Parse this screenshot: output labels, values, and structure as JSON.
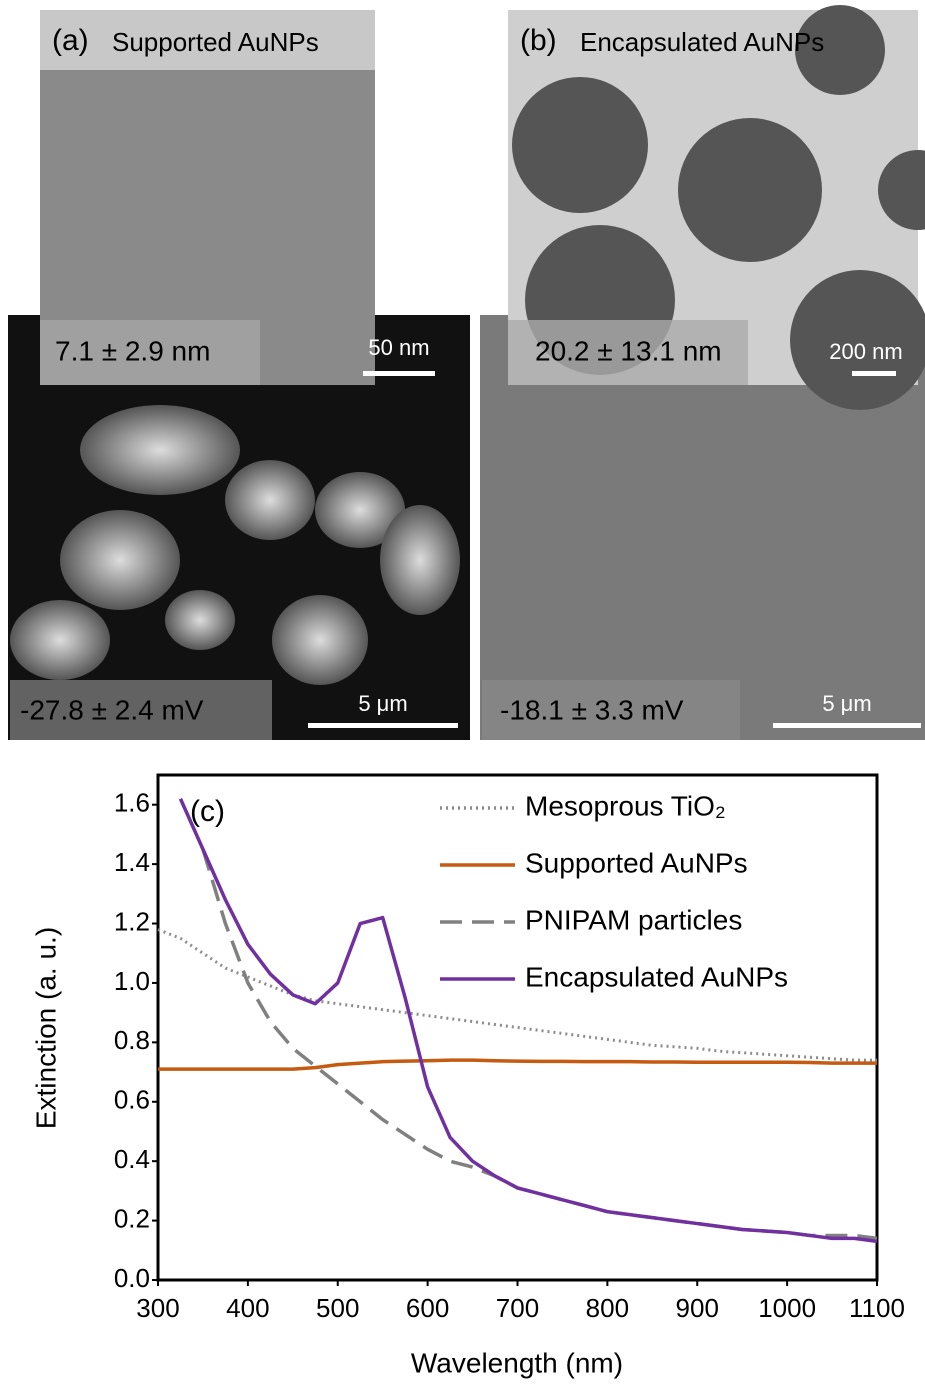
{
  "panels": {
    "a": {
      "label": "(a)",
      "title": "Supported AuNPs",
      "size": "7.1 ± 2.9 nm",
      "scale_tem": "50 nm",
      "zeta": "-27.8 ± 2.4 mV",
      "scale_sem": "5 μm"
    },
    "b": {
      "label": "(b)",
      "title": "Encapsulated AuNPs",
      "size": "20.2 ± 13.1 nm",
      "scale_tem": "200 nm",
      "zeta": "-18.1 ± 3.3 mV",
      "scale_sem": "5 μm"
    }
  },
  "chart_data": {
    "type": "line",
    "annotation": "(c)",
    "x_label": "Wavelength (nm)",
    "y_label": "Extinction (a. u.)",
    "xlim": [
      300,
      1100
    ],
    "ylim": [
      0,
      1.7
    ],
    "xticks": [
      300,
      400,
      500,
      600,
      700,
      800,
      900,
      1000,
      1100
    ],
    "yticks": [
      {
        "value": 0,
        "label": "0.0"
      },
      0.2,
      0.4,
      0.6,
      0.8,
      {
        "value": 1,
        "label": "1.0"
      },
      1.2,
      1.4,
      1.6
    ],
    "legend": "top-right",
    "x": [
      300,
      325,
      350,
      375,
      400,
      425,
      450,
      475,
      500,
      525,
      550,
      575,
      600,
      625,
      650,
      675,
      700,
      725,
      750,
      775,
      800,
      825,
      850,
      875,
      900,
      925,
      950,
      975,
      1000,
      1025,
      1050,
      1075,
      1100
    ],
    "series": [
      {
        "name": "Mesoprous TiO₂",
        "color": "#8c8c8c",
        "style": "dotted",
        "values": [
          1.18,
          1.15,
          1.1,
          1.05,
          1.02,
          0.99,
          0.96,
          0.94,
          0.93,
          0.92,
          0.91,
          0.9,
          0.89,
          0.88,
          0.87,
          0.86,
          0.85,
          0.84,
          0.83,
          0.82,
          0.81,
          0.8,
          0.79,
          0.785,
          0.78,
          0.77,
          0.765,
          0.76,
          0.755,
          0.75,
          0.745,
          0.74,
          0.74
        ]
      },
      {
        "name": "Supported AuNPs",
        "color": "#c55a11",
        "style": "solid",
        "values": [
          0.71,
          0.71,
          0.71,
          0.71,
          0.71,
          0.71,
          0.71,
          0.715,
          0.725,
          0.73,
          0.735,
          0.737,
          0.738,
          0.74,
          0.74,
          0.738,
          0.737,
          0.736,
          0.736,
          0.735,
          0.735,
          0.735,
          0.734,
          0.734,
          0.733,
          0.733,
          0.733,
          0.733,
          0.733,
          0.732,
          0.73,
          0.73,
          0.73
        ]
      },
      {
        "name": "PNIPAM particles",
        "color": "#808080",
        "style": "dashed",
        "values": [
          null,
          null,
          1.45,
          1.2,
          1.0,
          0.87,
          0.78,
          0.72,
          0.66,
          0.6,
          0.54,
          0.49,
          0.44,
          0.4,
          0.38,
          0.35,
          0.31,
          0.29,
          0.27,
          0.25,
          0.23,
          0.22,
          0.21,
          0.2,
          0.19,
          0.18,
          0.17,
          0.165,
          0.16,
          0.15,
          0.15,
          0.15,
          0.14
        ]
      },
      {
        "name": "Encapsulated AuNPs",
        "color": "#7030a0",
        "style": "solid",
        "values": [
          null,
          1.62,
          1.45,
          1.28,
          1.13,
          1.03,
          0.96,
          0.93,
          1.0,
          1.2,
          1.22,
          0.95,
          0.65,
          0.48,
          0.4,
          0.35,
          0.31,
          0.29,
          0.27,
          0.25,
          0.23,
          0.22,
          0.21,
          0.2,
          0.19,
          0.18,
          0.17,
          0.165,
          0.16,
          0.15,
          0.14,
          0.14,
          0.13
        ]
      }
    ]
  }
}
